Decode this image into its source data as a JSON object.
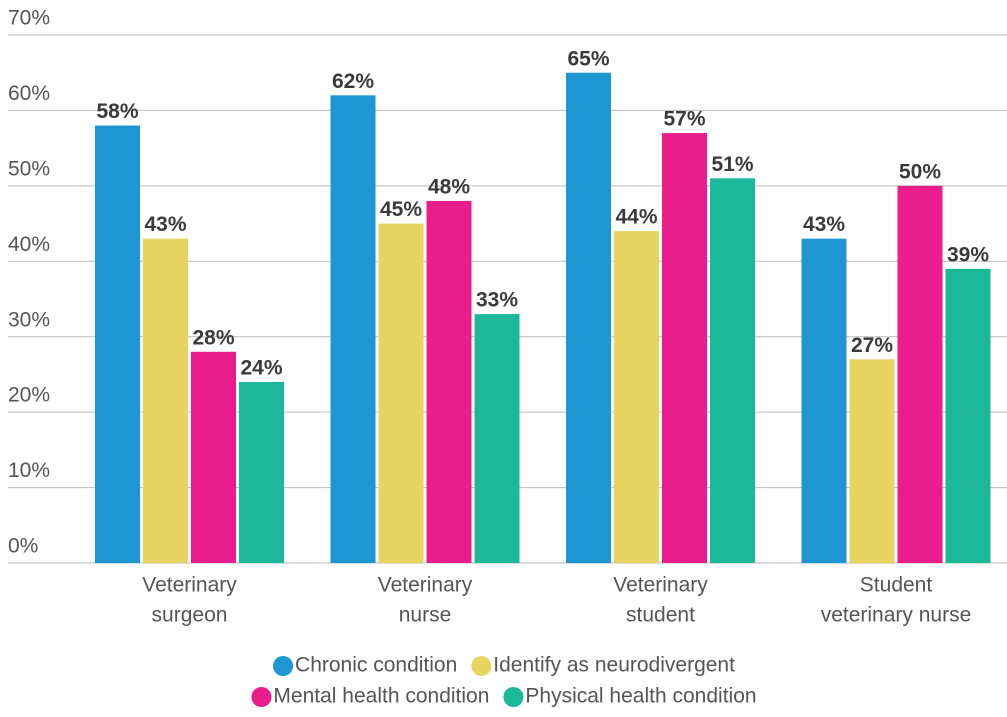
{
  "chart_data": {
    "type": "bar",
    "categories": [
      [
        "Veterinary",
        "surgeon"
      ],
      [
        "Veterinary",
        "nurse"
      ],
      [
        "Veterinary",
        "student"
      ],
      [
        "Student",
        "veterinary nurse"
      ]
    ],
    "series": [
      {
        "name": "Chronic condition",
        "color": "#1d96d3",
        "values": [
          58,
          62,
          65,
          43
        ],
        "value_labels": [
          "58%",
          "62%",
          "65%",
          "43%"
        ]
      },
      {
        "name": "Identify as neurodivergent",
        "color": "#e8d461",
        "values": [
          43,
          45,
          44,
          27
        ],
        "value_labels": [
          "43%",
          "45%",
          "44%",
          "27%"
        ]
      },
      {
        "name": "Mental health condition",
        "color": "#e91e8c",
        "values": [
          28,
          48,
          57,
          50
        ],
        "value_labels": [
          "28%",
          "48%",
          "57%",
          "50%"
        ]
      },
      {
        "name": "Physical health condition",
        "color": "#1bb99a",
        "values": [
          24,
          33,
          51,
          39
        ],
        "value_labels": [
          "24%",
          "33%",
          "51%",
          "39%"
        ]
      }
    ],
    "ylim": [
      0,
      70
    ],
    "yticks": [
      {
        "value": 0,
        "label": "0%"
      },
      {
        "value": 10,
        "label": "10%"
      },
      {
        "value": 20,
        "label": "20%"
      },
      {
        "value": 30,
        "label": "30%"
      },
      {
        "value": 40,
        "label": "40%"
      },
      {
        "value": 50,
        "label": "50%"
      },
      {
        "value": 60,
        "label": "60%"
      },
      {
        "value": 70,
        "label": "70%"
      }
    ],
    "grid": true,
    "legend": "bottom"
  }
}
